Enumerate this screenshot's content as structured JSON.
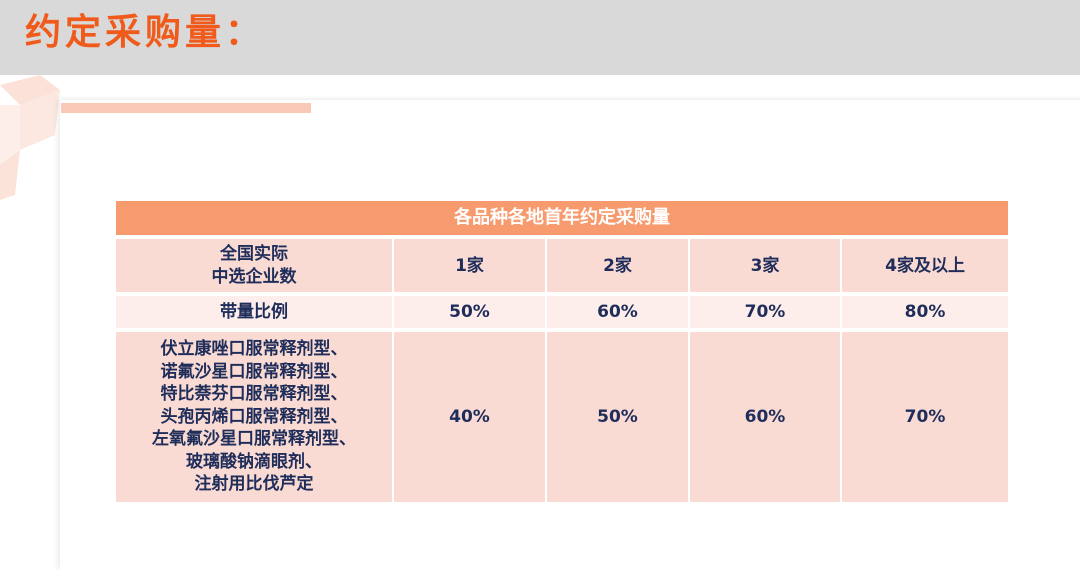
{
  "title": "约定采购量：",
  "table": {
    "caption": "各品种各地首年约定采购量",
    "header": {
      "label_lines": [
        "全国实际",
        "中选企业数"
      ],
      "cols": [
        "1家",
        "2家",
        "3家",
        "4家及以上"
      ]
    },
    "ratio_row": {
      "label": "带量比例",
      "values": [
        "50%",
        "60%",
        "70%",
        "80%"
      ]
    },
    "drug_row": {
      "drugs": [
        "伏立康唑口服常释剂型、",
        "诺氟沙星口服常释剂型、",
        "特比萘芬口服常释剂型、",
        "头孢丙烯口服常释剂型、",
        "左氧氟沙星口服常释剂型、",
        "玻璃酸钠滴眼剂、",
        "注射用比伐芦定"
      ],
      "values": [
        "40%",
        "50%",
        "60%",
        "70%"
      ]
    }
  },
  "colors": {
    "title": "#f05a1a",
    "caption_bg": "#f79a6e",
    "row_bg": "#fadbd3",
    "row_alt_bg": "#fdeeeb",
    "text": "#1f2d5a"
  }
}
